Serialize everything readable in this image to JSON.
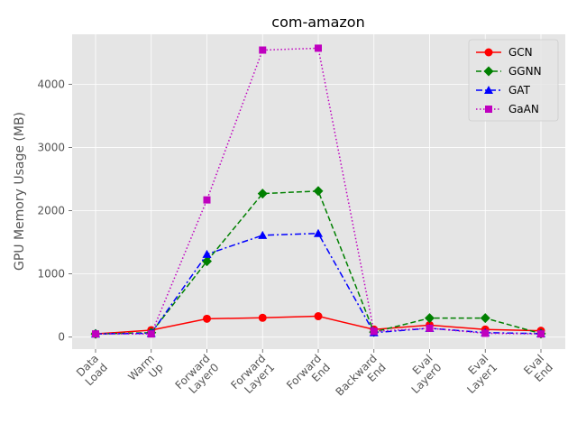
{
  "chart_data": {
    "type": "line",
    "title": "com-amazon",
    "xlabel": "",
    "ylabel": "GPU Memory Usage (MB)",
    "categories": [
      [
        "Data",
        "Load"
      ],
      [
        "Warm",
        "Up"
      ],
      [
        "Forward",
        "Layer0"
      ],
      [
        "Forward",
        "Layer1"
      ],
      [
        "Forward",
        "End"
      ],
      [
        "Backward",
        "End"
      ],
      [
        "Eval",
        "Layer0"
      ],
      [
        "Eval",
        "Layer1"
      ],
      [
        "Eval",
        "End"
      ]
    ],
    "yticks": [
      0,
      1000,
      2000,
      3000,
      4000
    ],
    "ylim": [
      -190,
      4790
    ],
    "grid": true,
    "legend_position": "top-right",
    "series": [
      {
        "name": "GCN",
        "color": "#ff0000",
        "dash": "solid",
        "marker": "circle",
        "values": [
          50,
          110,
          290,
          305,
          330,
          120,
          190,
          120,
          100
        ]
      },
      {
        "name": "GGNN",
        "color": "#008000",
        "dash": "dashed",
        "marker": "diamond",
        "values": [
          50,
          70,
          1200,
          2270,
          2310,
          80,
          300,
          300,
          55
        ]
      },
      {
        "name": "GAT",
        "color": "#0000ff",
        "dash": "dashdot",
        "marker": "triangle",
        "values": [
          50,
          60,
          1310,
          1610,
          1640,
          70,
          140,
          70,
          55
        ]
      },
      {
        "name": "GaAN",
        "color": "#bf00bf",
        "dash": "dotted",
        "marker": "square",
        "values": [
          50,
          50,
          2170,
          4540,
          4570,
          90,
          140,
          60,
          50
        ]
      }
    ]
  }
}
